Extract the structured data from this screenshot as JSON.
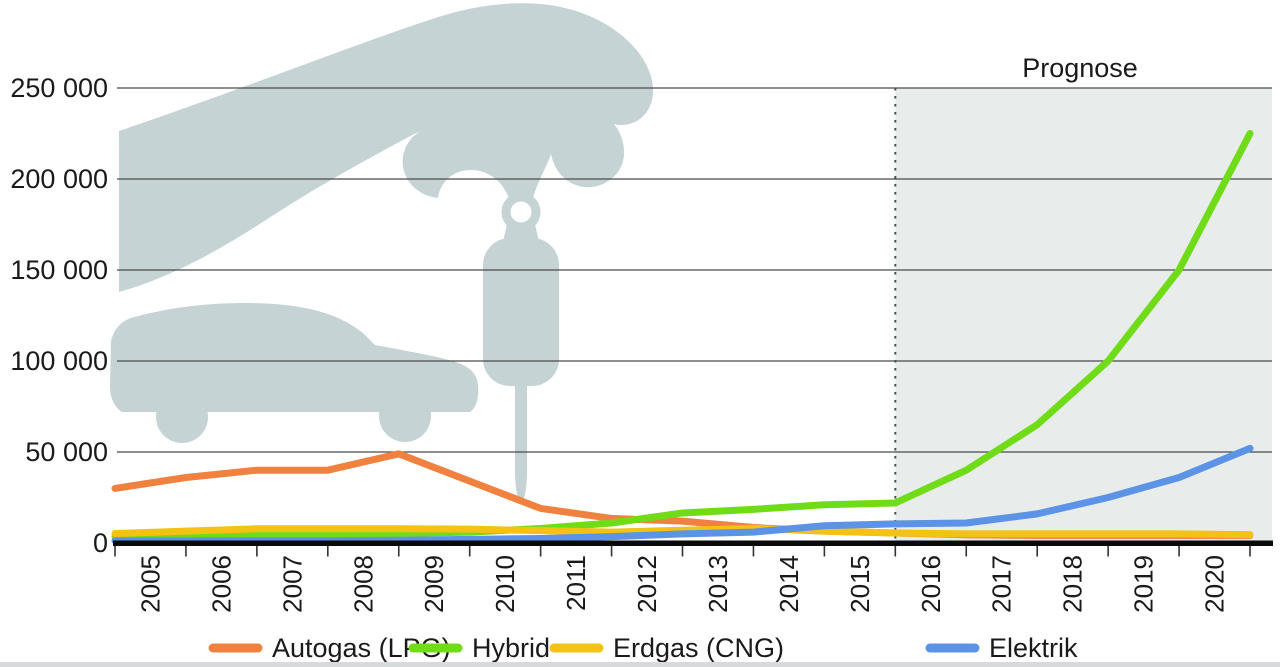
{
  "chart_data": {
    "type": "line",
    "title": "",
    "forecast_label": "Prognose",
    "forecast_from": "2016",
    "x_axis_labels": [
      "2005",
      "2006",
      "2007",
      "2008",
      "2009",
      "2010",
      "2011",
      "2012",
      "2013",
      "2014",
      "2015",
      "2016",
      "2017",
      "2018",
      "2019",
      "2020"
    ],
    "x_points_note": "17 vertices per series, plotted at year-boundary ticks from start of 2005 to end of 2020; year labels sit between ticks",
    "y_ticks": [
      0,
      50000,
      100000,
      150000,
      200000,
      250000
    ],
    "y_tick_labels": [
      "0",
      "50 000",
      "100 000",
      "150 000",
      "200 000",
      "250 000"
    ],
    "ylim": [
      0,
      262000
    ],
    "grid": true,
    "legend_position": "bottom",
    "series": [
      {
        "name": "Autogas (LPG)",
        "color": "#F0813E",
        "values": [
          30000,
          36000,
          40000,
          40000,
          49000,
          34000,
          19000,
          13500,
          12000,
          8500,
          6500,
          5500,
          4500,
          4200,
          4200,
          4200,
          4200
        ]
      },
      {
        "name": "Hybrid",
        "color": "#70DC17",
        "values": [
          3500,
          4000,
          5000,
          4800,
          5200,
          6000,
          8000,
          11000,
          16500,
          18500,
          21000,
          22000,
          40000,
          65000,
          100000,
          150000,
          225000
        ]
      },
      {
        "name": "Erdgas (CNG)",
        "color": "#F3C214",
        "values": [
          5200,
          6500,
          7800,
          7800,
          7800,
          7600,
          6800,
          6000,
          7000,
          8000,
          6500,
          5500,
          5000,
          5000,
          5000,
          5000,
          4600
        ]
      },
      {
        "name": "Elektrik",
        "color": "#5C93E6",
        "values": [
          1200,
          1200,
          1300,
          1300,
          1500,
          2000,
          2500,
          3500,
          5000,
          6000,
          9500,
          10500,
          11000,
          16000,
          25000,
          36000,
          52000
        ]
      }
    ],
    "forecast_region_color": "#E8EDEC",
    "silhouette_color": "#C6D3D4",
    "background_art": "hand holding a car key fob above a car silhouette"
  }
}
